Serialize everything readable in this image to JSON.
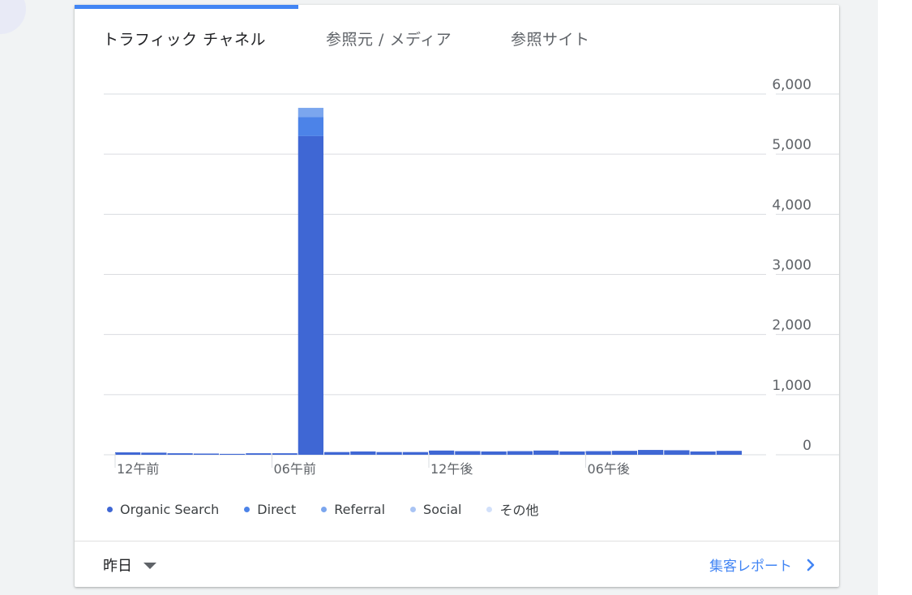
{
  "tabs": [
    {
      "label": "トラフィック チャネル",
      "active": true
    },
    {
      "label": "参照元 / メディア",
      "active": false
    },
    {
      "label": "参照サイト",
      "active": false
    }
  ],
  "chart_data": {
    "type": "bar",
    "stacked": true,
    "title": "",
    "xlabel": "",
    "ylabel": "",
    "ylim": [
      0,
      6000
    ],
    "yticks": [
      "0",
      "1,000",
      "2,000",
      "3,000",
      "4,000",
      "5,000",
      "6,000"
    ],
    "x_tick_labels": [
      {
        "label": "12午前",
        "hour": 0
      },
      {
        "label": "06午前",
        "hour": 6
      },
      {
        "label": "12午後",
        "hour": 12
      },
      {
        "label": "06午後",
        "hour": 18
      }
    ],
    "categories": [
      "0",
      "1",
      "2",
      "3",
      "4",
      "5",
      "6",
      "7",
      "8",
      "9",
      "10",
      "11",
      "12",
      "13",
      "14",
      "15",
      "16",
      "17",
      "18",
      "19",
      "20",
      "21",
      "22",
      "23"
    ],
    "series": [
      {
        "name": "Organic Search",
        "color": "#3f67d4",
        "values": [
          40,
          35,
          25,
          20,
          15,
          25,
          25,
          5300,
          45,
          55,
          45,
          45,
          70,
          60,
          55,
          60,
          70,
          55,
          60,
          65,
          80,
          75,
          55,
          65
        ]
      },
      {
        "name": "Direct",
        "color": "#4c83e8",
        "values": [
          0,
          0,
          0,
          0,
          0,
          0,
          0,
          320,
          0,
          0,
          0,
          0,
          0,
          0,
          0,
          0,
          0,
          0,
          0,
          0,
          0,
          0,
          0,
          0
        ]
      },
      {
        "name": "Referral",
        "color": "#7ba6ee",
        "values": [
          0,
          0,
          0,
          0,
          0,
          0,
          0,
          150,
          0,
          0,
          0,
          0,
          0,
          0,
          0,
          0,
          0,
          0,
          0,
          0,
          0,
          0,
          0,
          0
        ]
      },
      {
        "name": "Social",
        "color": "#a9c4f4",
        "values": [
          0,
          0,
          0,
          0,
          0,
          0,
          0,
          0,
          0,
          0,
          0,
          0,
          0,
          0,
          0,
          0,
          0,
          0,
          0,
          0,
          0,
          0,
          0,
          0
        ]
      },
      {
        "name": "その他",
        "color": "#d2e0fa",
        "values": [
          0,
          0,
          0,
          0,
          0,
          0,
          0,
          0,
          0,
          0,
          0,
          0,
          0,
          0,
          0,
          0,
          0,
          0,
          0,
          0,
          0,
          0,
          0,
          0
        ]
      }
    ],
    "legend_position": "bottom"
  },
  "footer": {
    "period_label": "昨日",
    "report_link_label": "集客レポート"
  }
}
